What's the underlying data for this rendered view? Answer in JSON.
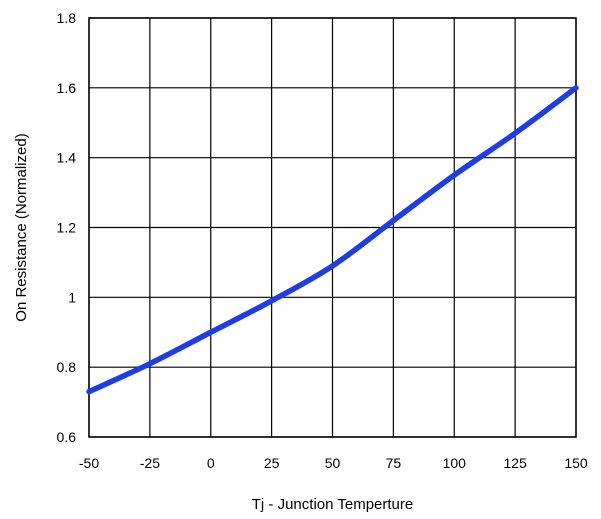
{
  "chart_data": {
    "type": "line",
    "title": "",
    "xlabel": "Tj - Junction Temperture",
    "ylabel": "On Resistance (Normalized)",
    "xlim": [
      -50,
      150
    ],
    "ylim": [
      0.6,
      1.8
    ],
    "x_ticks": [
      -50,
      -25,
      0,
      25,
      50,
      75,
      100,
      125,
      150
    ],
    "y_ticks": [
      0.6,
      0.8,
      1,
      1.2,
      1.4,
      1.6,
      1.8
    ],
    "x_tick_labels": [
      "-50",
      "-25",
      "0",
      "25",
      "50",
      "75",
      "100",
      "125",
      "150"
    ],
    "y_tick_labels": [
      "0.6",
      "0.8",
      "1",
      "1.2",
      "1.4",
      "1.6",
      "1.8"
    ],
    "grid": true,
    "series": [
      {
        "color": "#1f3de6",
        "x": [
          -50,
          -25,
          0,
          25,
          50,
          75,
          100,
          125,
          150
        ],
        "y": [
          0.73,
          0.81,
          0.9,
          0.99,
          1.09,
          1.22,
          1.35,
          1.47,
          1.6
        ]
      }
    ]
  }
}
